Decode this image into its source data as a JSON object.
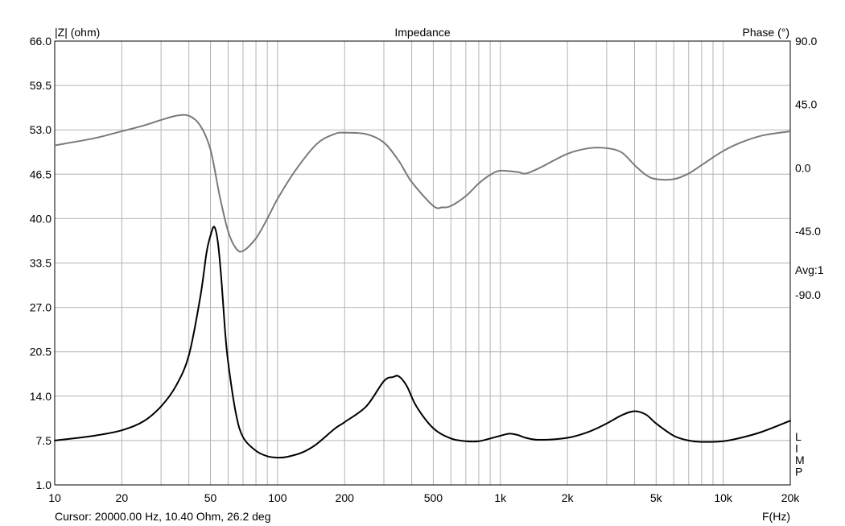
{
  "chart_data": {
    "type": "line",
    "title": "Impedance",
    "left_axis": {
      "label": "|Z| (ohm)",
      "range": [
        1.0,
        66.0
      ],
      "ticks": [
        "66.0",
        "59.5",
        "53.0",
        "46.5",
        "40.0",
        "33.5",
        "27.0",
        "20.5",
        "14.0",
        "7.5",
        "1.0"
      ]
    },
    "right_axis": {
      "label": "Phase (°)",
      "range": [
        -225.0,
        90.0
      ],
      "ticks": [
        "90.0",
        "45.0",
        "0.0",
        "-45.0",
        "-90.0"
      ]
    },
    "x_axis": {
      "label": "F(Hz)",
      "scale": "log",
      "range": [
        10,
        20000
      ],
      "ticks": [
        {
          "value": 10,
          "label": "10"
        },
        {
          "value": 20,
          "label": "20"
        },
        {
          "value": 50,
          "label": "50"
        },
        {
          "value": 100,
          "label": "100"
        },
        {
          "value": 200,
          "label": "200"
        },
        {
          "value": 500,
          "label": "500"
        },
        {
          "value": 1000,
          "label": "1k"
        },
        {
          "value": 2000,
          "label": "2k"
        },
        {
          "value": 5000,
          "label": "5k"
        },
        {
          "value": 10000,
          "label": "10k"
        },
        {
          "value": 20000,
          "label": "20k"
        }
      ]
    },
    "grid": true,
    "averaging_label": "Avg:1",
    "side_letters": [
      "L",
      "I",
      "M",
      "P"
    ],
    "cursor_text": "Cursor: 20000.00 Hz, 10.40 Ohm, 26.2 deg",
    "series": [
      {
        "axis": "left",
        "color": "#000000",
        "x": [
          10,
          15,
          20,
          25,
          30,
          35,
          40,
          45,
          48,
          50,
          52,
          54,
          56,
          58,
          60,
          65,
          70,
          80,
          90,
          100,
          110,
          130,
          150,
          180,
          200,
          250,
          300,
          330,
          350,
          380,
          420,
          500,
          600,
          700,
          800,
          900,
          1000,
          1100,
          1200,
          1300,
          1500,
          2000,
          2500,
          3000,
          3500,
          4000,
          4500,
          5000,
          6000,
          7000,
          8000,
          10000,
          12000,
          15000,
          20000
        ],
        "y": [
          7.5,
          8.2,
          9.0,
          10.3,
          12.5,
          15.5,
          20.0,
          28.5,
          35.0,
          37.5,
          38.8,
          36.5,
          31.0,
          24.0,
          19.0,
          11.5,
          8.0,
          6.0,
          5.2,
          5.0,
          5.1,
          5.8,
          7.0,
          9.2,
          10.2,
          12.5,
          16.2,
          16.8,
          16.9,
          15.5,
          12.5,
          9.3,
          7.8,
          7.4,
          7.4,
          7.8,
          8.2,
          8.5,
          8.3,
          7.9,
          7.6,
          7.9,
          8.8,
          10.0,
          11.2,
          11.8,
          11.3,
          10.0,
          8.2,
          7.5,
          7.3,
          7.4,
          7.9,
          8.8,
          10.4
        ]
      },
      {
        "axis": "right",
        "color": "#7a7a7a",
        "x": [
          10,
          15,
          20,
          25,
          30,
          35,
          40,
          45,
          50,
          55,
          60,
          65,
          70,
          80,
          90,
          100,
          120,
          150,
          180,
          200,
          250,
          300,
          350,
          400,
          500,
          550,
          600,
          700,
          800,
          900,
          1000,
          1200,
          1300,
          1500,
          2000,
          2500,
          3000,
          3500,
          4000,
          4500,
          5000,
          6000,
          7000,
          8000,
          10000,
          12000,
          15000,
          20000
        ],
        "y": [
          16,
          21,
          26,
          30,
          34,
          37,
          37,
          30,
          13,
          -20,
          -45,
          -57,
          -59,
          -50,
          -36,
          -22,
          -2,
          17,
          24,
          25,
          24,
          18,
          5,
          -10,
          -27,
          -28,
          -27,
          -20,
          -11,
          -5,
          -2,
          -3,
          -4,
          0,
          10,
          14,
          14,
          11,
          2,
          -5,
          -8,
          -8,
          -4,
          2,
          12,
          18,
          23,
          26
        ]
      }
    ]
  }
}
